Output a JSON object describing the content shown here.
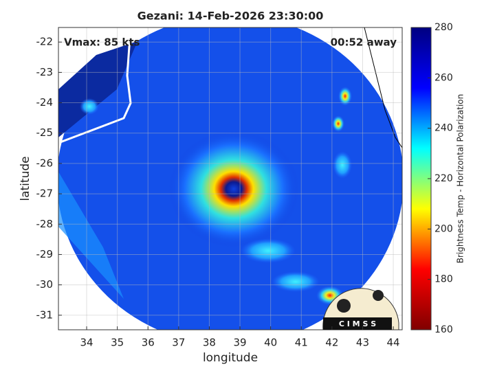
{
  "chart_data": {
    "type": "map",
    "title": "Gezani: 14-Feb-2026 23:30:00",
    "annotations": [
      "Vmax: 85 kts",
      "00:52 away"
    ],
    "xlabel": "longitude",
    "ylabel": "latitude",
    "xlim": [
      33.08,
      44.29
    ],
    "ylim": [
      -31.48,
      -21.52
    ],
    "xticks": [
      34,
      35,
      36,
      37,
      38,
      39,
      40,
      41,
      42,
      43,
      44
    ],
    "yticks": [
      -22,
      -23,
      -24,
      -25,
      -26,
      -27,
      -28,
      -29,
      -30,
      -31
    ],
    "grid": true,
    "colorbar": {
      "label": "Brightness Temp - Horizontal Polarization",
      "lim": [
        160,
        280
      ],
      "ticks": [
        160,
        180,
        200,
        220,
        240,
        260,
        280
      ],
      "colormap": [
        "#800000",
        "#ff0000",
        "#ffff00",
        "#00ffff",
        "#0000ff",
        "#000080"
      ]
    },
    "logo": "C I M S S"
  }
}
